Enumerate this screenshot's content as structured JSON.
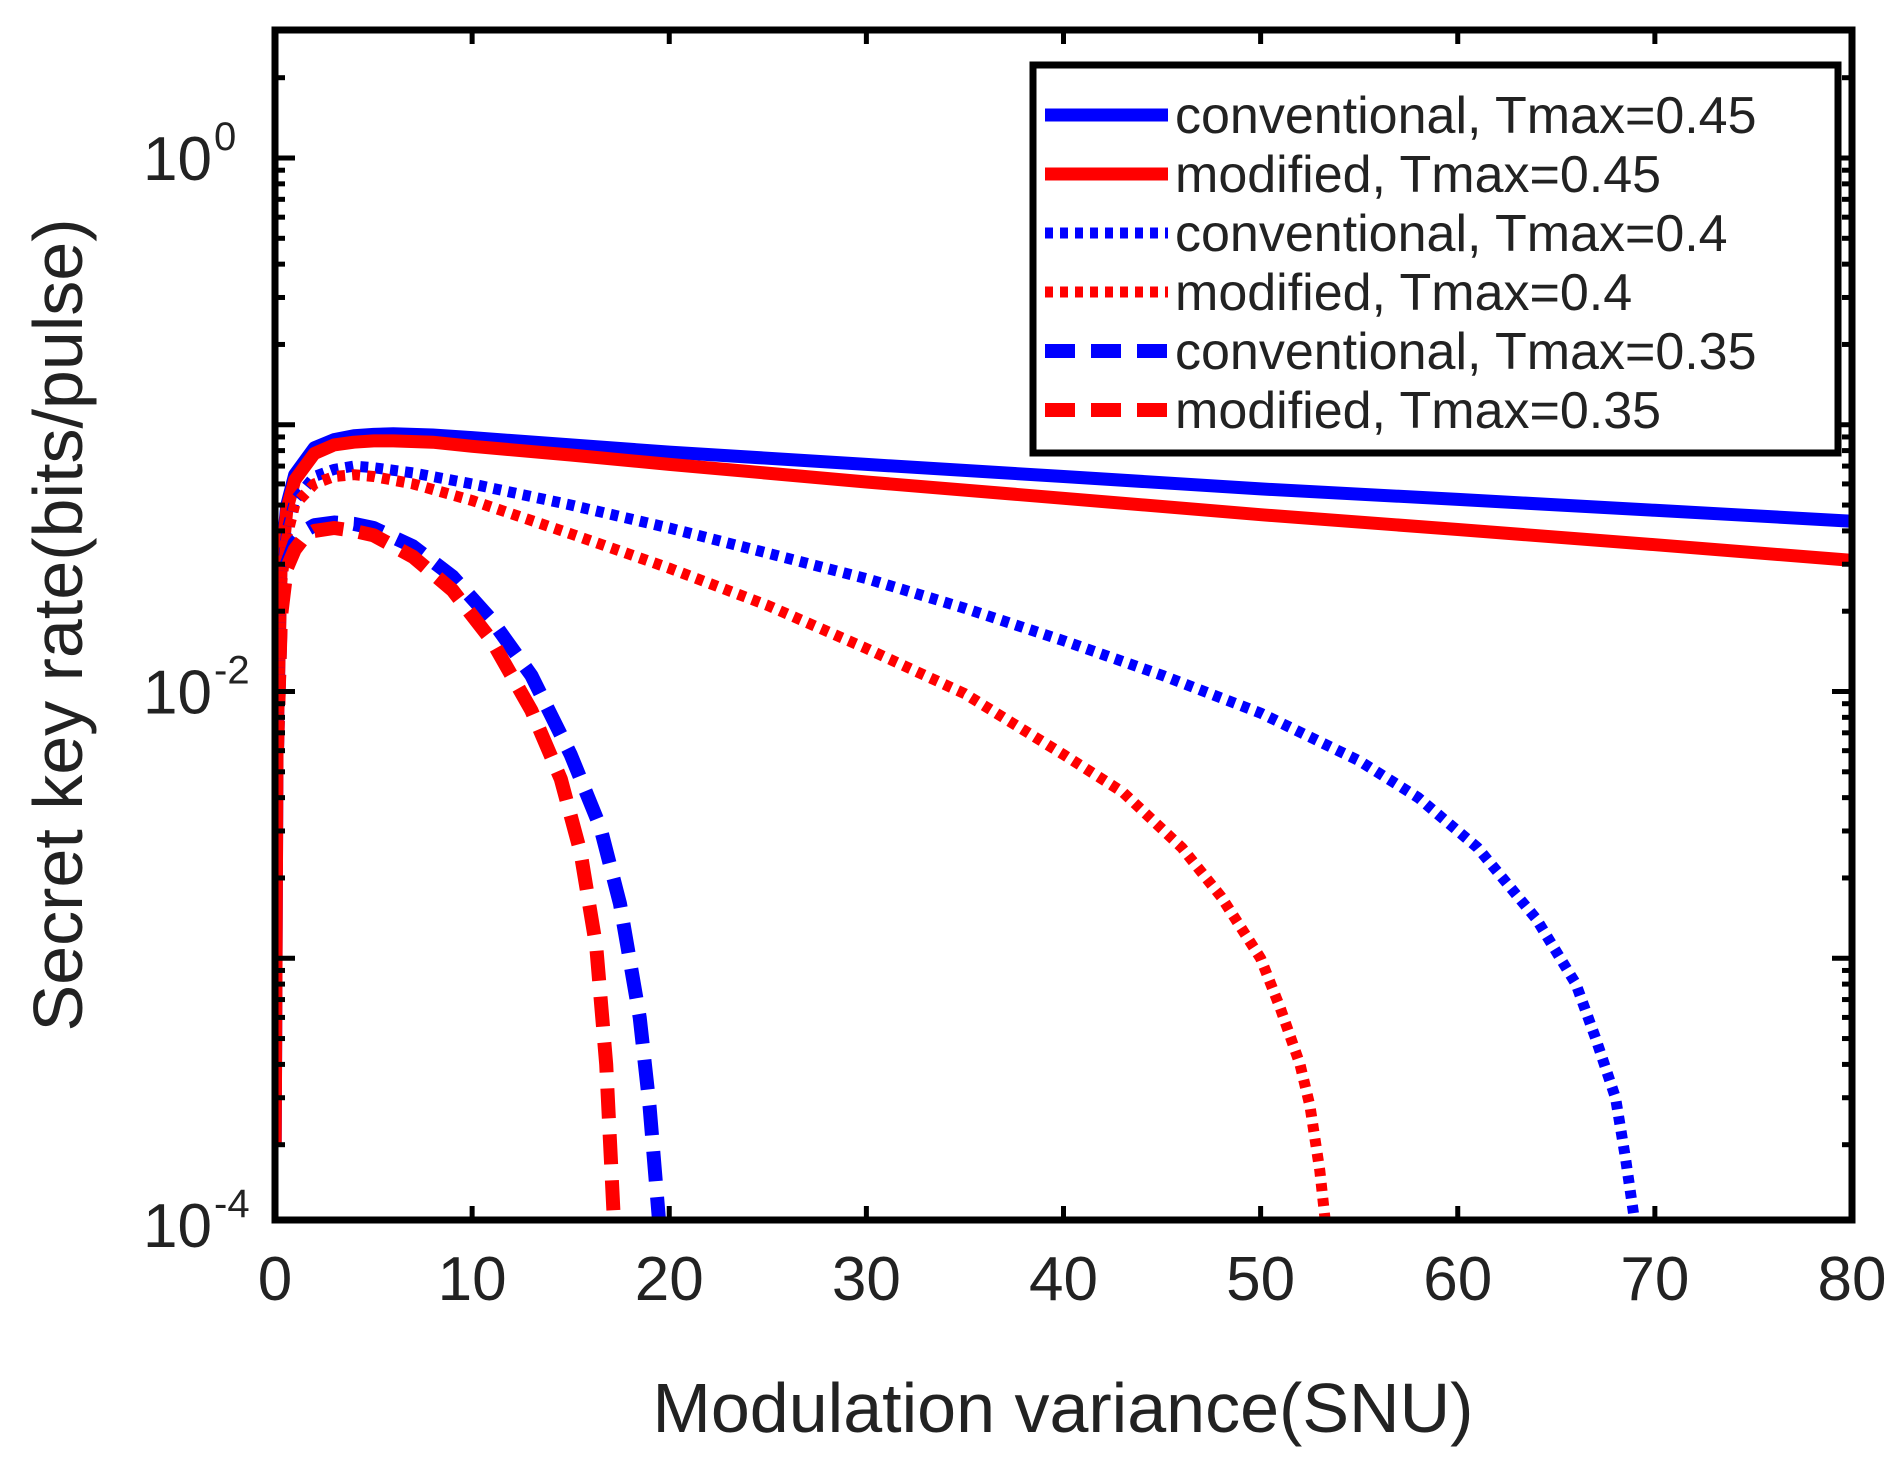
{
  "chart_data": {
    "type": "line",
    "title": "",
    "xlabel": "Modulation variance(SNU)",
    "ylabel": "Secret key rate(bits/pulse)",
    "xlim": [
      0,
      80
    ],
    "ylim": [
      0.0001,
      3
    ],
    "yscale": "log",
    "grid": false,
    "legend_position": "top-right",
    "xticks": [
      {
        "value": 0,
        "label": "0"
      },
      {
        "value": 10,
        "label": "10"
      },
      {
        "value": 20,
        "label": "20"
      },
      {
        "value": 30,
        "label": "30"
      },
      {
        "value": 40,
        "label": "40"
      },
      {
        "value": 50,
        "label": "50"
      },
      {
        "value": 60,
        "label": "60"
      },
      {
        "value": 70,
        "label": "70"
      },
      {
        "value": 80,
        "label": "80"
      }
    ],
    "yticks": [
      {
        "value": 1,
        "base": "10",
        "exp": "0"
      },
      {
        "value": 0.01,
        "base": "10",
        "exp": "-2"
      },
      {
        "value": 0.0001,
        "base": "10",
        "exp": "-4"
      }
    ],
    "series": [
      {
        "name": "conventional, Tmax=0.45",
        "color": "#0000ff",
        "style": "solid",
        "x": [
          0.01,
          0.1,
          0.3,
          0.6,
          1,
          2,
          3,
          4,
          5,
          6,
          8,
          10,
          15,
          20,
          30,
          40,
          50,
          60,
          70,
          80
        ],
        "y": [
          0.0002,
          0.006,
          0.03,
          0.05,
          0.065,
          0.082,
          0.088,
          0.091,
          0.092,
          0.0925,
          0.0915,
          0.0895,
          0.084,
          0.079,
          0.071,
          0.064,
          0.0575,
          0.0525,
          0.0478,
          0.0435
        ]
      },
      {
        "name": "modified, Tmax=0.45",
        "color": "#ff0000",
        "style": "solid",
        "x": [
          0.01,
          0.1,
          0.3,
          0.6,
          1,
          2,
          3,
          4,
          5,
          6,
          8,
          10,
          15,
          20,
          30,
          40,
          50,
          60,
          70,
          80
        ],
        "y": [
          0.0002,
          0.006,
          0.028,
          0.048,
          0.062,
          0.078,
          0.084,
          0.086,
          0.087,
          0.087,
          0.086,
          0.083,
          0.077,
          0.071,
          0.061,
          0.053,
          0.046,
          0.0405,
          0.0355,
          0.031
        ]
      },
      {
        "name": "conventional, Tmax=0.4",
        "color": "#0000ff",
        "style": "dotted",
        "x": [
          0.1,
          0.3,
          0.6,
          1,
          2,
          3,
          4,
          5,
          7,
          10,
          15,
          20,
          25,
          30,
          35,
          40,
          45,
          50,
          55,
          58,
          61,
          64,
          66,
          67,
          68,
          68.5,
          69
        ],
        "y": [
          0.006,
          0.025,
          0.04,
          0.052,
          0.064,
          0.068,
          0.07,
          0.069,
          0.066,
          0.06,
          0.05,
          0.041,
          0.033,
          0.0265,
          0.0205,
          0.0155,
          0.0115,
          0.0083,
          0.0055,
          0.004,
          0.0026,
          0.0014,
          0.0008,
          0.0005,
          0.0003,
          0.00018,
          0.0001
        ]
      },
      {
        "name": "modified, Tmax=0.4",
        "color": "#ff0000",
        "style": "dotted",
        "x": [
          0.1,
          0.3,
          0.6,
          1,
          2,
          3,
          4,
          5,
          7,
          10,
          15,
          20,
          25,
          30,
          35,
          40,
          43,
          46,
          48,
          50,
          51,
          52,
          52.5,
          53,
          53.3
        ],
        "y": [
          0.006,
          0.024,
          0.038,
          0.05,
          0.06,
          0.064,
          0.065,
          0.064,
          0.06,
          0.052,
          0.039,
          0.029,
          0.021,
          0.0145,
          0.0098,
          0.0058,
          0.0042,
          0.0026,
          0.0017,
          0.001,
          0.00065,
          0.0004,
          0.00028,
          0.00016,
          0.0001
        ]
      },
      {
        "name": "conventional, Tmax=0.35",
        "color": "#0000ff",
        "style": "dashed",
        "x": [
          0.1,
          0.3,
          0.6,
          1,
          1.5,
          2,
          3,
          4,
          5,
          7,
          9,
          11,
          13,
          15,
          16.5,
          17.5,
          18.5,
          19,
          19.5
        ],
        "y": [
          0.006,
          0.02,
          0.03,
          0.036,
          0.04,
          0.042,
          0.043,
          0.0425,
          0.041,
          0.035,
          0.027,
          0.0185,
          0.0115,
          0.0058,
          0.0031,
          0.0016,
          0.0006,
          0.00028,
          0.0001
        ]
      },
      {
        "name": "modified, Tmax=0.35",
        "color": "#ff0000",
        "style": "dashed",
        "x": [
          0.1,
          0.3,
          0.6,
          1,
          1.5,
          2,
          3,
          4,
          5,
          7,
          9,
          11,
          13,
          14.5,
          15.5,
          16.3,
          16.8,
          17.2
        ],
        "y": [
          0.006,
          0.019,
          0.029,
          0.034,
          0.038,
          0.04,
          0.041,
          0.04,
          0.0385,
          0.032,
          0.024,
          0.0155,
          0.0085,
          0.0047,
          0.0025,
          0.0011,
          0.0004,
          0.0001
        ]
      }
    ]
  }
}
